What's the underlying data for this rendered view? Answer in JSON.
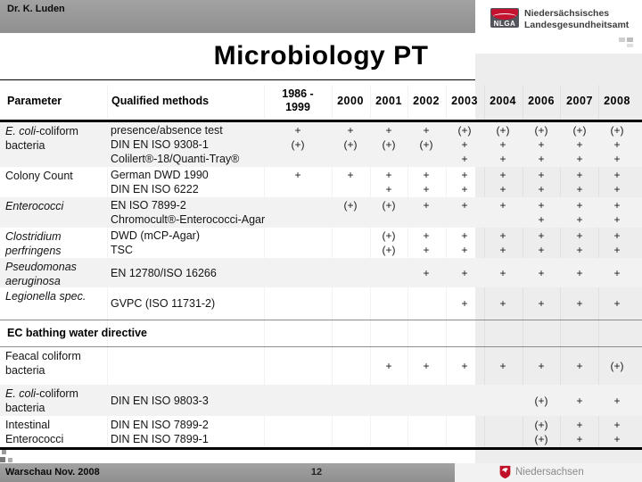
{
  "slide": {
    "presenter": "Dr. K. Luden",
    "title": "Microbiology PT",
    "logo": {
      "abbr": "NLGA",
      "line1": "Niedersächsisches",
      "line2": "Landesgesundheitsamt"
    },
    "footer": {
      "event": "Warschau Nov. 2008",
      "page": "12",
      "state_logo_text": "Niedersachsen"
    },
    "colors": {
      "accent_red": "#c41230",
      "bar_gray": "#979797",
      "stripe_gray": "#f2f2f2",
      "panel_gray": "#ededed"
    }
  },
  "table": {
    "col_headers": {
      "parameter": "Parameter",
      "methods": "Qualified methods",
      "period_line1": "1986 -",
      "period_line2": "1999",
      "years": [
        "2000",
        "2001",
        "2002",
        "2003",
        "2004",
        "2006",
        "2007",
        "2008"
      ]
    },
    "legend_note": "columns: 1986-1999, 2000, 2001, 2002, 2003, 2004, 2006, 2007, 2008",
    "sections": [
      {
        "header": "",
        "rows": [
          {
            "param_italic": "E. coli",
            "param_rest": "-coliform bacteria",
            "lines": [
              {
                "method": "presence/absence test",
                "marks": [
                  "+",
                  "+",
                  "+",
                  "+",
                  "(+)",
                  "(+)",
                  "(+)",
                  "(+)",
                  "(+)"
                ]
              },
              {
                "method": "DIN EN ISO 9308-1",
                "marks": [
                  "(+)",
                  "(+)",
                  "(+)",
                  "(+)",
                  "+",
                  "+",
                  "+",
                  "+",
                  "+"
                ]
              },
              {
                "method": "Colilert®-18/Quanti-Tray®",
                "marks": [
                  "",
                  "",
                  "",
                  "",
                  "+",
                  "+",
                  "+",
                  "+",
                  "+"
                ]
              }
            ]
          },
          {
            "param_italic": "",
            "param_rest": "Colony Count",
            "lines": [
              {
                "method": "German DWD 1990",
                "marks": [
                  "+",
                  "+",
                  "+",
                  "+",
                  "+",
                  "+",
                  "+",
                  "+",
                  "+"
                ]
              },
              {
                "method": "DIN EN ISO 6222",
                "marks": [
                  "",
                  "",
                  "+",
                  "+",
                  "+",
                  "+",
                  "+",
                  "+",
                  "+"
                ]
              }
            ]
          },
          {
            "param_italic": "Enterococci",
            "param_rest": "",
            "lines": [
              {
                "method": "EN ISO 7899-2",
                "marks": [
                  "",
                  "(+)",
                  "(+)",
                  "+",
                  "+",
                  "+",
                  "+",
                  "+",
                  "+"
                ]
              },
              {
                "method": "Chromocult®-Enterococci-Agar",
                "marks": [
                  "",
                  "",
                  "",
                  "",
                  "",
                  "",
                  "+",
                  "+",
                  "+"
                ]
              }
            ]
          },
          {
            "param_italic": "Clostridium perfringens",
            "param_rest": "",
            "lines": [
              {
                "method": "DWD (mCP-Agar)",
                "marks": [
                  "",
                  "",
                  "(+)",
                  "+",
                  "+",
                  "+",
                  "+",
                  "+",
                  "+"
                ]
              },
              {
                "method": "TSC",
                "marks": [
                  "",
                  "",
                  "(+)",
                  "+",
                  "+",
                  "+",
                  "+",
                  "+",
                  "+"
                ]
              }
            ]
          },
          {
            "param_italic": "Pseudomonas aeruginosa",
            "param_rest": "",
            "lines": [
              {
                "method": "EN 12780/ISO 16266",
                "marks": [
                  "",
                  "",
                  "",
                  "+",
                  "+",
                  "+",
                  "+",
                  "+",
                  "+"
                ]
              }
            ]
          },
          {
            "param_italic": "Legionella spec.",
            "param_rest": "",
            "lines": [
              {
                "method": "GVPC (ISO 11731-2)",
                "marks": [
                  "",
                  "",
                  "",
                  "",
                  "+",
                  "+",
                  "+",
                  "+",
                  "+"
                ]
              }
            ]
          }
        ]
      },
      {
        "header": "EC bathing water directive",
        "rows": [
          {
            "param_italic": "",
            "param_rest": "Feacal coliform bacteria",
            "lines": [
              {
                "method": "",
                "marks": [
                  "",
                  "",
                  "+",
                  "+",
                  "+",
                  "+",
                  "+",
                  "+",
                  "(+)"
                ]
              }
            ]
          },
          {
            "param_italic": "E. coli",
            "param_rest": "-coliform bacteria",
            "lines": [
              {
                "method": "DIN EN ISO 9803-3",
                "marks": [
                  "",
                  "",
                  "",
                  "",
                  "",
                  "",
                  "(+)",
                  "+",
                  "+"
                ]
              }
            ]
          },
          {
            "param_italic": "",
            "param_rest": "Intestinal Enterococci",
            "lines": [
              {
                "method": "DIN EN ISO 7899-2",
                "marks": [
                  "",
                  "",
                  "",
                  "",
                  "",
                  "",
                  "(+)",
                  "+",
                  "+"
                ]
              },
              {
                "method": "DIN EN ISO 7899-1",
                "marks": [
                  "",
                  "",
                  "",
                  "",
                  "",
                  "",
                  "(+)",
                  "+",
                  "+"
                ]
              }
            ]
          }
        ]
      }
    ]
  }
}
